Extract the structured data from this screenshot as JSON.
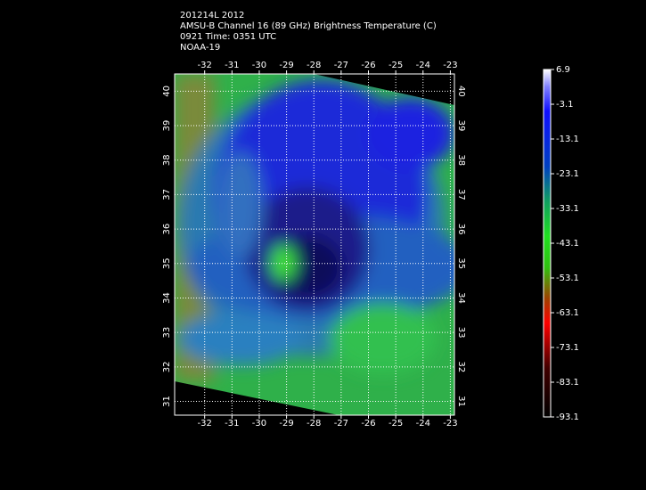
{
  "header": {
    "lines": [
      "201214L 2012",
      "AMSU-B Channel 16 (89 GHz) Brightness Temperature (C)",
      "0921 Time: 0351 UTC",
      "NOAA-19"
    ]
  },
  "map": {
    "lon_range": [
      -33.1,
      -22.85
    ],
    "lat_range": [
      30.6,
      40.5
    ],
    "lon_ticks": [
      -32,
      -31,
      -30,
      -29,
      -28,
      -27,
      -26,
      -25,
      -24,
      -23
    ],
    "lat_ticks": [
      31,
      32,
      33,
      34,
      35,
      36,
      37,
      38,
      39,
      40
    ],
    "grid": true
  },
  "colorbar": {
    "range": [
      -93.1,
      6.9
    ],
    "ticks": [
      6.9,
      -3.1,
      -13.1,
      -23.1,
      -33.1,
      -43.1,
      -53.1,
      -63.1,
      -73.1,
      -83.1,
      -93.1
    ]
  }
}
